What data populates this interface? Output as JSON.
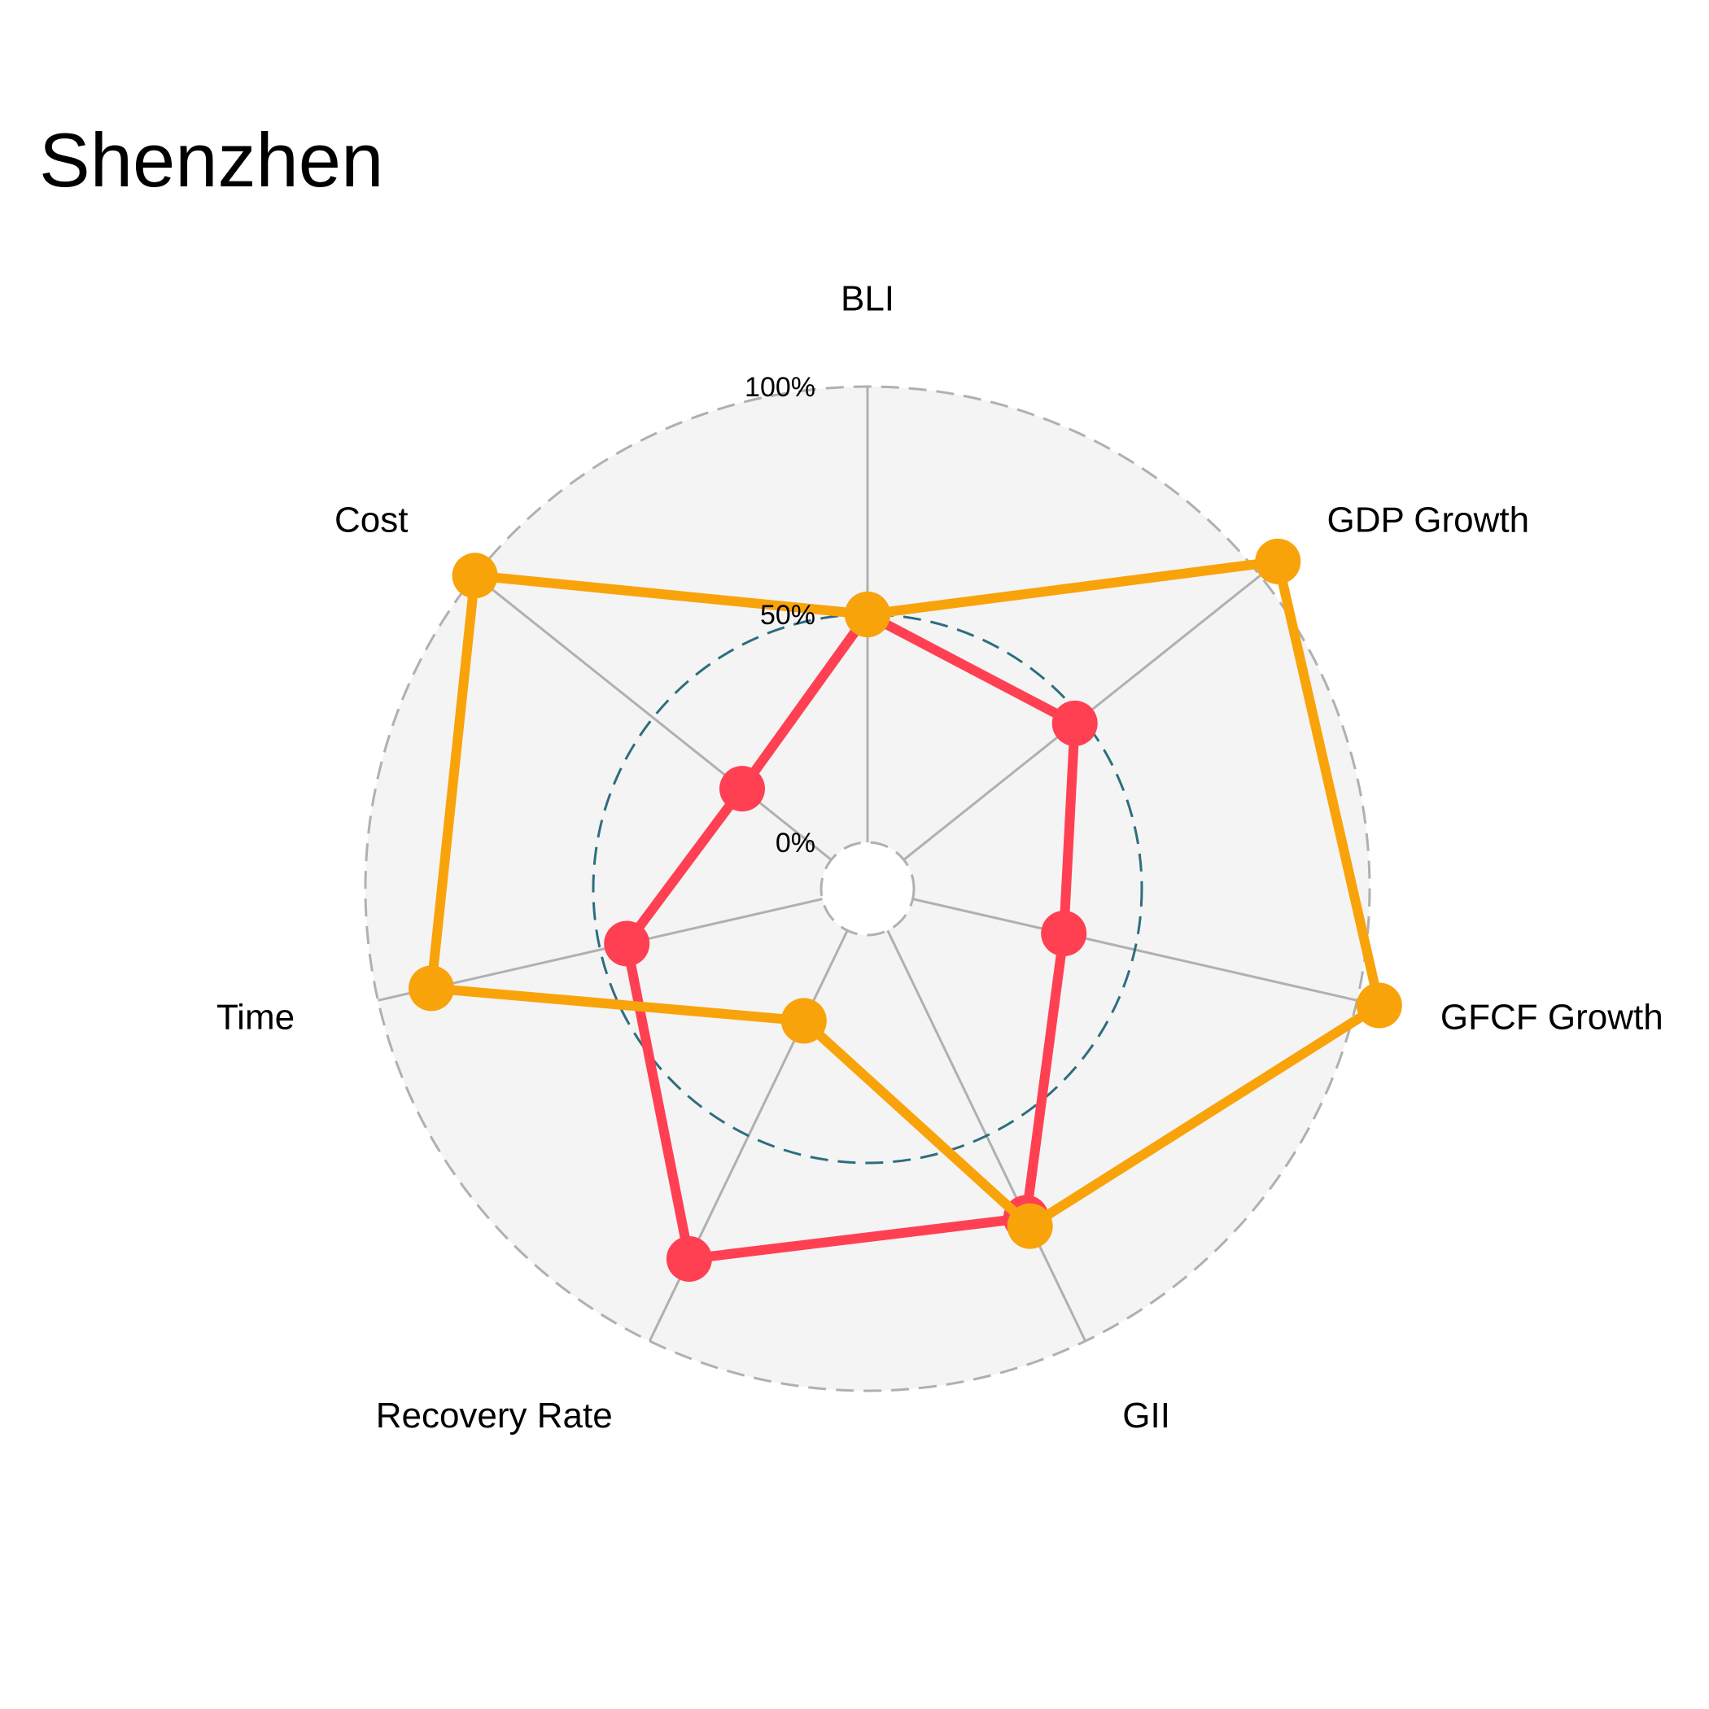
{
  "chart_data": {
    "type": "radar",
    "title": "Shenzhen",
    "axes": [
      "BLI",
      "GDP Growth",
      "GFCF Growth",
      "GII",
      "Recovery Rate",
      "Time",
      "Cost"
    ],
    "ticks": [
      {
        "value": 0,
        "label": "0%"
      },
      {
        "value": 50,
        "label": "50%"
      },
      {
        "value": 100,
        "label": "100%"
      }
    ],
    "range": [
      0,
      100
    ],
    "series": [
      {
        "values": [
          50,
          48,
          34,
          70,
          80,
          44,
          25
        ],
        "color": "#f9a30b"
      },
      {
        "values": [
          50,
          105,
          105,
          72,
          22,
          88,
          100
        ],
        "color": "#f9a30b"
      }
    ],
    "series_colors": [
      "#ff4052",
      "#f9a30b"
    ],
    "colors": {
      "background_disc": "#f4f4f4",
      "spoke": "#b0b0b0",
      "outer_ring": "#b0b0b0",
      "mid_ring": "#2d6e7e"
    }
  }
}
